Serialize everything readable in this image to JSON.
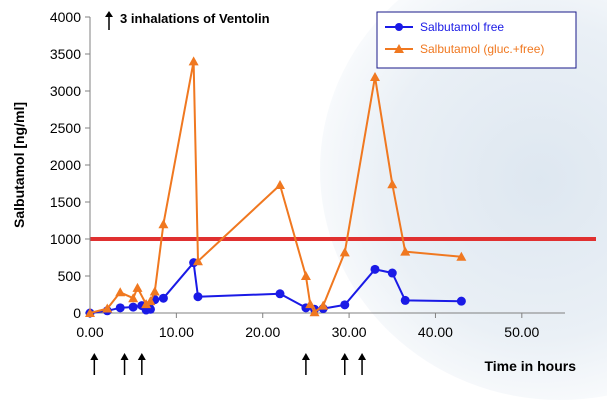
{
  "chart_data": {
    "type": "line",
    "title": "",
    "xlabel": "Time in hours",
    "ylabel": "Salbutamol [ng/ml]",
    "xlim": [
      0,
      55
    ],
    "ylim": [
      0,
      4000
    ],
    "xticks": [
      "0.00",
      "10.00",
      "20.00",
      "30.00",
      "40.00",
      "50.00"
    ],
    "yticks": [
      "0",
      "500",
      "1000",
      "1500",
      "2000",
      "2500",
      "3000",
      "3500",
      "4000"
    ],
    "grid": false,
    "legend_position": "top-right",
    "annotation": "3 inhalations of Ventolin",
    "threshold": {
      "value": 1000,
      "color": "#e03030"
    },
    "inhalation_times": [
      0.5,
      4,
      6,
      25,
      29.5,
      31.5
    ],
    "series": [
      {
        "name": "Salbutamol free",
        "color": "#1a1ae6",
        "marker": "circle",
        "x": [
          0,
          2,
          3.5,
          5,
          6,
          6.5,
          7,
          7.5,
          8.5,
          12,
          12.5,
          22,
          25,
          26,
          27,
          29.5,
          33,
          35,
          36.5,
          43
        ],
        "y": [
          0,
          30,
          70,
          80,
          100,
          40,
          50,
          180,
          200,
          680,
          220,
          260,
          70,
          50,
          60,
          110,
          590,
          540,
          170,
          160
        ]
      },
      {
        "name": "Salbutamol (gluc.+free)",
        "color": "#f07820",
        "marker": "triangle",
        "x": [
          0,
          2,
          3.5,
          5,
          5.5,
          6.5,
          7,
          7.5,
          8.5,
          12,
          12.5,
          22,
          25,
          25.5,
          26,
          27,
          29.5,
          33,
          35,
          36.5,
          43
        ],
        "y": [
          0,
          60,
          280,
          200,
          340,
          120,
          160,
          290,
          1200,
          3400,
          700,
          1730,
          500,
          120,
          10,
          100,
          820,
          3190,
          1740,
          830,
          760
        ]
      }
    ]
  }
}
